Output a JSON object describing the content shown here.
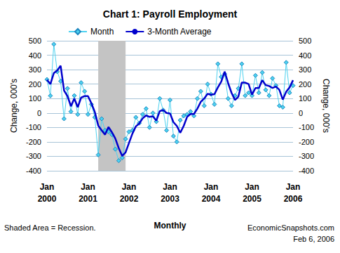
{
  "chart_data": {
    "type": "line",
    "title": "Chart 1: Payroll Employment",
    "x_label": "Monthly",
    "y_label": "Change, 000's",
    "y2_label": "Change, 000's",
    "note": "Shaded Area = Recession.",
    "source": "EconomicSnapshots.com",
    "date": "Feb 6, 2006",
    "shaded_region": {
      "from": 15,
      "to": 23
    },
    "categories": [
      "Jan\n2000",
      null,
      null,
      null,
      null,
      null,
      null,
      null,
      null,
      null,
      null,
      null,
      "Jan\n2001",
      null,
      null,
      null,
      null,
      null,
      null,
      null,
      null,
      null,
      null,
      null,
      "Jan\n2002",
      null,
      null,
      null,
      null,
      null,
      null,
      null,
      null,
      null,
      null,
      null,
      "Jan\n2003",
      null,
      null,
      null,
      null,
      null,
      null,
      null,
      null,
      null,
      null,
      null,
      "Jan\n2004",
      null,
      null,
      null,
      null,
      null,
      null,
      null,
      null,
      null,
      null,
      null,
      "Jan\n2005",
      null,
      null,
      null,
      null,
      null,
      null,
      null,
      null,
      null,
      null,
      null,
      "Jan\n2006"
    ],
    "series": [
      {
        "name": "Month",
        "color": "#4dd2f0",
        "marker": "diamond",
        "line_style": "solid",
        "values": [
          232,
          119,
          476,
          286,
          220,
          -40,
          170,
          10,
          120,
          -10,
          210,
          150,
          -10,
          60,
          -30,
          -290,
          -40,
          -120,
          -130,
          -150,
          -250,
          -330,
          -310,
          -180,
          -130,
          -120,
          -30,
          -70,
          -10,
          30,
          -100,
          0,
          -60,
          100,
          20,
          -120,
          90,
          -160,
          -200,
          -50,
          -20,
          -10,
          10,
          -20,
          100,
          150,
          50,
          200,
          130,
          60,
          340,
          250,
          270,
          100,
          50,
          120,
          170,
          340,
          120,
          140,
          120,
          260,
          140,
          280,
          160,
          120,
          240,
          190,
          50,
          40,
          350,
          140,
          190
        ]
      },
      {
        "name": "3-Month Average",
        "color": "#0000cc",
        "marker": "none",
        "line_style": "solid",
        "values": [
          230,
          200,
          276,
          294,
          327,
          155,
          117,
          47,
          100,
          40,
          107,
          117,
          117,
          67,
          7,
          -87,
          -120,
          -150,
          -97,
          -133,
          -177,
          -243,
          -297,
          -273,
          -207,
          -143,
          -93,
          -73,
          -37,
          -17,
          -27,
          -23,
          -53,
          13,
          20,
          0,
          -3,
          -63,
          -90,
          -137,
          -90,
          -27,
          -7,
          -7,
          30,
          77,
          100,
          133,
          127,
          130,
          177,
          217,
          287,
          207,
          140,
          90,
          113,
          210,
          210,
          200,
          127,
          173,
          173,
          227,
          193,
          187,
          173,
          183,
          160,
          93,
          147,
          177,
          227
        ]
      }
    ],
    "ylim": [
      -400,
      500
    ],
    "yticks": [
      -400,
      -300,
      -200,
      -100,
      0,
      100,
      200,
      300,
      400,
      500
    ],
    "y2lim": [
      -400,
      500
    ],
    "y2ticks": [
      -400,
      -300,
      -200,
      -100,
      0,
      100,
      200,
      300,
      400,
      500
    ],
    "grid": true,
    "legend": "top-left"
  }
}
